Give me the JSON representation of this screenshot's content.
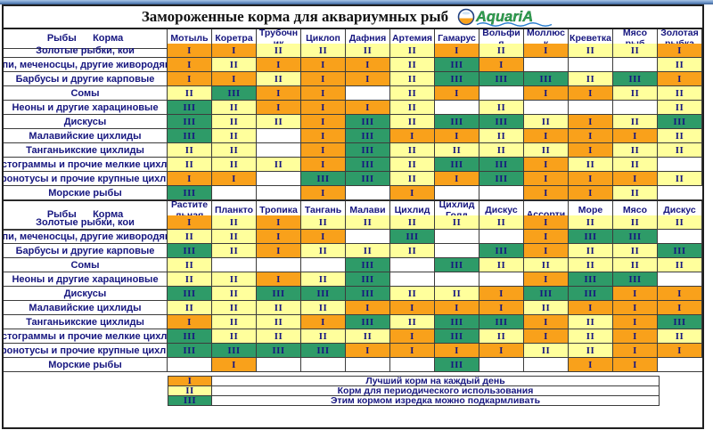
{
  "header": {
    "title": "Замороженные корма для аквариумных рыб",
    "logo_text": "AquariA"
  },
  "colors": {
    "orange": "#F9A11B",
    "yellow": "#FFFF9C",
    "green": "#2E9B68",
    "blank": "#FFFFFF",
    "navy_text": "#16167F"
  },
  "legend": [
    {
      "mark": "I",
      "color_key": "orange",
      "label": "Лучший корм на каждый день"
    },
    {
      "mark": "II",
      "color_key": "yellow",
      "label": "Корм для периодического использования"
    },
    {
      "mark": "III",
      "color_key": "green",
      "label": "Этим кормом изредка можно подкармливать"
    }
  ],
  "chart_data": [
    {
      "type": "table",
      "row_header": "Рыбы      Корма",
      "columns": [
        "Мотыль",
        "Коретра",
        "Трубочник",
        "Циклоп",
        "Дафния",
        "Артемия",
        "Гамарус",
        "Вольфия",
        "Моллюск",
        "Креветка",
        "Мясо рыб",
        "Золотая рыбка"
      ],
      "rows": [
        {
          "label": "Золотые рыбки, кои",
          "cells": [
            "I",
            "I",
            "II",
            "II",
            "II",
            "II",
            "I",
            "II",
            "I",
            "II",
            "II",
            "I"
          ]
        },
        {
          "label": "Гуппи, меченосцы, другие живородящие",
          "cells": [
            "I",
            "II",
            "I",
            "I",
            "I",
            "II",
            "III",
            "I",
            "",
            "",
            "",
            "II"
          ]
        },
        {
          "label": "Барбусы  и другие карповые",
          "cells": [
            "I",
            "I",
            "II",
            "I",
            "I",
            "II",
            "III",
            "III",
            "III",
            "II",
            "III",
            "I"
          ]
        },
        {
          "label": "Сомы",
          "cells": [
            "II",
            "III",
            "I",
            "I",
            "",
            "II",
            "I",
            "",
            "I",
            "I",
            "II",
            "II"
          ]
        },
        {
          "label": "Неоны и другие харациновые",
          "cells": [
            "III",
            "II",
            "I",
            "I",
            "I",
            "II",
            "",
            "II",
            "",
            "",
            "",
            "II"
          ]
        },
        {
          "label": "Дискусы",
          "cells": [
            "III",
            "II",
            "II",
            "I",
            "III",
            "II",
            "III",
            "III",
            "II",
            "I",
            "II",
            "III"
          ]
        },
        {
          "label": "Малавийские цихлиды",
          "cells": [
            "III",
            "II",
            "",
            "I",
            "III",
            "I",
            "I",
            "II",
            "I",
            "I",
            "I",
            "II"
          ]
        },
        {
          "label": "Танганьикские цихлиды",
          "cells": [
            "II",
            "II",
            "",
            "I",
            "III",
            "II",
            "II",
            "II",
            "II",
            "I",
            "II",
            "II"
          ]
        },
        {
          "label": "Апистограммы и прочие мелкие цихлиды",
          "cells": [
            "II",
            "II",
            "II",
            "I",
            "III",
            "II",
            "III",
            "III",
            "I",
            "II",
            "II",
            ""
          ]
        },
        {
          "label": "Астронотусы и прочие крупные цихлиды",
          "cells": [
            "I",
            "I",
            "",
            "III",
            "III",
            "II",
            "I",
            "III",
            "I",
            "I",
            "I",
            "II"
          ]
        },
        {
          "label": "Морские рыбы",
          "cells": [
            "III",
            "",
            "",
            "I",
            "",
            "I",
            "",
            "",
            "I",
            "I",
            "II",
            ""
          ]
        }
      ]
    },
    {
      "type": "table",
      "row_header": "Рыбы      Корма",
      "columns": [
        "Растительная диета",
        "Планктон",
        "Тропикал диет",
        "Танганьика диет",
        "Малави диет",
        "Цихлид диет",
        "Цихлид Голд диет",
        "Дискус диет",
        "Ассорти",
        "Море диет",
        "Мясо криля",
        "Дискус Профи"
      ],
      "rows": [
        {
          "label": "Золотые рыбки, кои",
          "cells": [
            "I",
            "II",
            "I",
            "II",
            "II",
            "II",
            "II",
            "II",
            "I",
            "II",
            "II",
            "II"
          ]
        },
        {
          "label": "Гуппи, меченосцы, другие живородящие",
          "cells": [
            "II",
            "II",
            "I",
            "I",
            "",
            "III",
            "",
            "",
            "I",
            "III",
            "III",
            ""
          ]
        },
        {
          "label": "Барбусы  и другие карповые",
          "cells": [
            "III",
            "II",
            "I",
            "II",
            "II",
            "II",
            "",
            "III",
            "I",
            "II",
            "II",
            "III"
          ]
        },
        {
          "label": "Сомы",
          "cells": [
            "II",
            "",
            "",
            "",
            "III",
            "",
            "III",
            "II",
            "II",
            "II",
            "II",
            "II"
          ]
        },
        {
          "label": "Неоны и другие харациновые",
          "cells": [
            "II",
            "II",
            "I",
            "II",
            "III",
            "",
            "",
            "",
            "I",
            "III",
            "III",
            ""
          ]
        },
        {
          "label": "Дискусы",
          "cells": [
            "III",
            "II",
            "III",
            "III",
            "III",
            "II",
            "II",
            "I",
            "III",
            "III",
            "I",
            "I"
          ]
        },
        {
          "label": "Малавийские цихлиды",
          "cells": [
            "II",
            "II",
            "II",
            "II",
            "I",
            "I",
            "I",
            "I",
            "II",
            "I",
            "I",
            "I"
          ]
        },
        {
          "label": "Танганьикские цихлиды",
          "cells": [
            "I",
            "II",
            "II",
            "I",
            "III",
            "II",
            "III",
            "III",
            "I",
            "II",
            "I",
            "III"
          ]
        },
        {
          "label": "Апистограммы и прочие мелкие цихлиды",
          "cells": [
            "III",
            "II",
            "II",
            "II",
            "II",
            "I",
            "III",
            "II",
            "I",
            "II",
            "I",
            "II"
          ]
        },
        {
          "label": "Астронотусы и прочие крупные цихлиды",
          "cells": [
            "III",
            "III",
            "III",
            "III",
            "I",
            "I",
            "I",
            "I",
            "II",
            "II",
            "I",
            "I"
          ]
        },
        {
          "label": "Морские рыбы",
          "cells": [
            "",
            "I",
            "",
            "",
            "",
            "",
            "III",
            "",
            "",
            "I",
            "I",
            ""
          ]
        }
      ]
    }
  ]
}
